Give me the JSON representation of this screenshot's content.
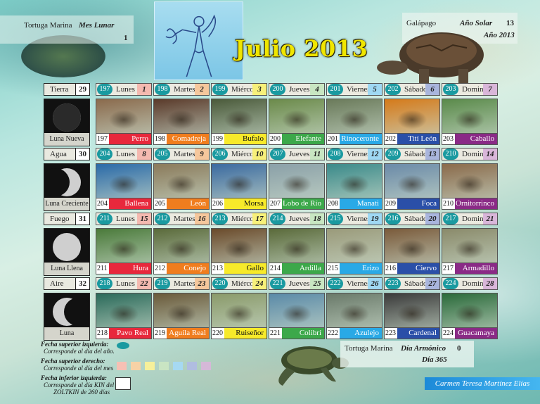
{
  "header": {
    "top_left": {
      "label": "Tortuga Marina",
      "title": "Mes Lunar",
      "value": "1"
    },
    "top_right": {
      "label": "Galápago",
      "title": "Año Solar",
      "value": "13",
      "year": "Año 2013"
    },
    "month_title": "Julio 2013"
  },
  "weeks": [
    {
      "element": "Tierra",
      "number": "29",
      "moon": "Luna Nueva",
      "days": [
        {
          "kin": "197",
          "name": "Lunes",
          "date": "1",
          "num": "197",
          "animal": "Perro",
          "color": "#e8283c",
          "head": "#f4b9b0"
        },
        {
          "kin": "198",
          "name": "Martes",
          "date": "2",
          "num": "198",
          "animal": "Comadreja",
          "color": "#f07d1e",
          "head": "#f5c79c"
        },
        {
          "kin": "199",
          "name": "Miércoles",
          "date": "3",
          "num": "199",
          "animal": "Bufalo",
          "color": "#f7ea2a",
          "head": "#f7f07a"
        },
        {
          "kin": "200",
          "name": "Jueves",
          "date": "4",
          "num": "200",
          "animal": "Elefante",
          "color": "#3ca84a",
          "head": "#c8e6c2"
        },
        {
          "kin": "201",
          "name": "Viernes",
          "date": "5",
          "num": "201",
          "animal": "Rinoceronte",
          "color": "#29a9e6",
          "head": "#9fd8f3"
        },
        {
          "kin": "202",
          "name": "Sábado",
          "date": "6",
          "num": "202",
          "animal": "Tití León Dorado",
          "color": "#2a4fa8",
          "head": "#a9b5dd"
        },
        {
          "kin": "203",
          "name": "Domingo",
          "date": "7",
          "num": "203",
          "animal": "Caballo",
          "color": "#8a2a86",
          "head": "#d9b6d9"
        }
      ]
    },
    {
      "element": "Agua",
      "number": "30",
      "moon": "Luna Creciente",
      "days": [
        {
          "kin": "204",
          "name": "Lunes",
          "date": "8",
          "num": "204",
          "animal": "Ballena Azul",
          "color": "#e8283c",
          "head": "#f4b9b0"
        },
        {
          "kin": "205",
          "name": "Martes",
          "date": "9",
          "num": "205",
          "animal": "León Marino",
          "color": "#f07d1e",
          "head": "#f5c79c"
        },
        {
          "kin": "206",
          "name": "Miércoles",
          "date": "10",
          "num": "206",
          "animal": "Morsa",
          "color": "#f7ea2a",
          "head": "#f7f07a"
        },
        {
          "kin": "207",
          "name": "Jueves",
          "date": "11",
          "num": "207",
          "animal": "Lobo de Río",
          "color": "#3ca84a",
          "head": "#c8e6c2"
        },
        {
          "kin": "208",
          "name": "Viernes",
          "date": "12",
          "num": "208",
          "animal": "Manati",
          "color": "#29a9e6",
          "head": "#9fd8f3"
        },
        {
          "kin": "209",
          "name": "Sábado",
          "date": "13",
          "num": "209",
          "animal": "Foca",
          "color": "#2a4fa8",
          "head": "#a9b5dd"
        },
        {
          "kin": "210",
          "name": "Domingo",
          "date": "14",
          "num": "210",
          "animal": "Ornitorrinco",
          "color": "#8a2a86",
          "head": "#d9b6d9"
        }
      ]
    },
    {
      "element": "Fuego",
      "number": "31",
      "moon": "Luna Llena",
      "days": [
        {
          "kin": "211",
          "name": "Lunes",
          "date": "15",
          "num": "211",
          "animal": "Hura",
          "color": "#e8283c",
          "head": "#f4b9b0"
        },
        {
          "kin": "212",
          "name": "Martes",
          "date": "16",
          "num": "212",
          "animal": "Conejo",
          "color": "#f07d1e",
          "head": "#f5c79c"
        },
        {
          "kin": "213",
          "name": "Miércoles",
          "date": "17",
          "num": "213",
          "animal": "Gallo",
          "color": "#f7ea2a",
          "head": "#f7f07a"
        },
        {
          "kin": "214",
          "name": "Jueves",
          "date": "18",
          "num": "214",
          "animal": "Ardilla",
          "color": "#3ca84a",
          "head": "#c8e6c2"
        },
        {
          "kin": "215",
          "name": "Viernes",
          "date": "19",
          "num": "215",
          "animal": "Erizo Pigmeo",
          "color": "#29a9e6",
          "head": "#9fd8f3"
        },
        {
          "kin": "216",
          "name": "Sábado",
          "date": "20",
          "num": "216",
          "animal": "Ciervo",
          "color": "#2a4fa8",
          "head": "#a9b5dd"
        },
        {
          "kin": "217",
          "name": "Domingo",
          "date": "21",
          "num": "217",
          "animal": "Armadillo",
          "color": "#8a2a86",
          "head": "#d9b6d9"
        }
      ]
    },
    {
      "element": "Aire",
      "number": "32",
      "moon": "Luna Menguante",
      "days": [
        {
          "kin": "218",
          "name": "Lunes",
          "date": "22",
          "num": "218",
          "animal": "Pavo Real",
          "color": "#e8283c",
          "head": "#f4b9b0"
        },
        {
          "kin": "219",
          "name": "Martes",
          "date": "23",
          "num": "219",
          "animal": "Aguila Real",
          "color": "#f07d1e",
          "head": "#f5c79c"
        },
        {
          "kin": "220",
          "name": "Miércoles",
          "date": "24",
          "num": "220",
          "animal": "Ruiseñor",
          "color": "#f7ea2a",
          "head": "#f7f07a"
        },
        {
          "kin": "221",
          "name": "Jueves",
          "date": "25",
          "num": "221",
          "animal": "Colibrí",
          "color": "#3ca84a",
          "head": "#c8e6c2"
        },
        {
          "kin": "222",
          "name": "Viernes",
          "date": "26",
          "num": "222",
          "animal": "Azulejo",
          "color": "#29a9e6",
          "head": "#9fd8f3"
        },
        {
          "kin": "223",
          "name": "Sábado",
          "date": "27",
          "num": "223",
          "animal": "Cardenal",
          "color": "#2a4fa8",
          "head": "#a9b5dd"
        },
        {
          "kin": "224",
          "name": "Domingo",
          "date": "28",
          "num": "224",
          "animal": "Guacamaya",
          "color": "#8a2a86",
          "head": "#d9b6d9"
        }
      ]
    }
  ],
  "legend": {
    "l1_title": "Fecha superior izquierda:",
    "l1_desc": "Corresponde al día del año.",
    "l2_title": "Fecha superior derecho:",
    "l2_desc": "Corresponde al día del mes",
    "l3_title": "Fecha inferior izquierda:",
    "l3_desc1": "Corresponde al día KIN del",
    "l3_desc2": "ZOLTKIN de 260 días",
    "swatches": [
      "#f6c0b4",
      "#f7d2a6",
      "#f6f09a",
      "#c9e5c3",
      "#a6d9f2",
      "#b0bde0",
      "#d5b8d8"
    ]
  },
  "footer": {
    "label": "Tortuga Marina",
    "title": "Día Armónico",
    "value": "0",
    "day": "Día 365",
    "author": "Carmen Teresa Martínez Elías"
  },
  "photo_tints": [
    [
      "#8a6a4c",
      "#5a3a2a",
      "#4a5a3a",
      "#6b8a4a",
      "#6a7a5a",
      "#d57a1a",
      "#5a8a4a"
    ],
    [
      "#2a6aa8",
      "#8a7a5a",
      "#3a6aa0",
      "#8aa0a8",
      "#3a8a8a",
      "#6a8aa8",
      "#8a6a4a"
    ],
    [
      "#4a7a3a",
      "#5a6a3a",
      "#6a4a2a",
      "#5a6a3a",
      "#9a9a7a",
      "#7a5a3a",
      "#8a8a6a"
    ],
    [
      "#2a6a5a",
      "#6a5a3a",
      "#8a9a6a",
      "#5a8aa8",
      "#6a7a6a",
      "#3a3a3a",
      "#2a6a3a"
    ]
  ]
}
